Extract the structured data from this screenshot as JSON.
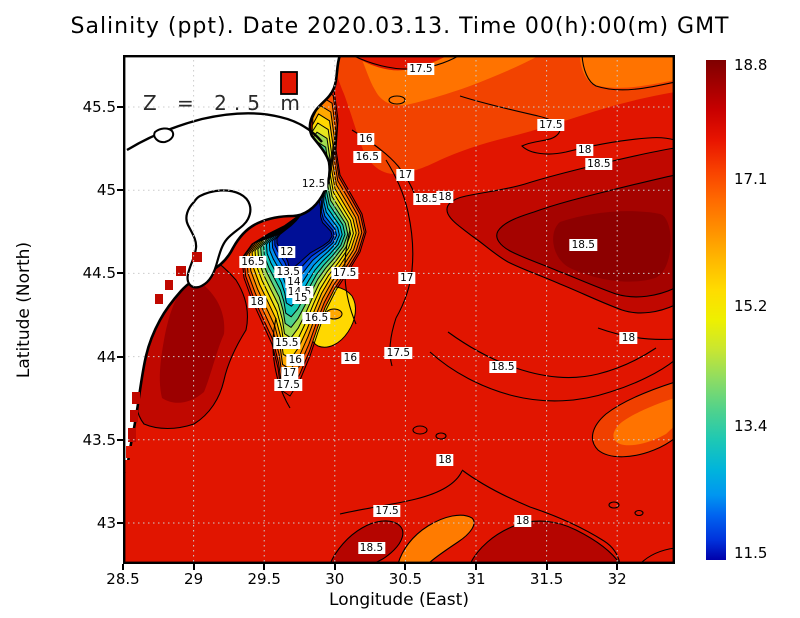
{
  "title": "Salinity (ppt). Date 2020.03.13. Time 00(h):00(m) GMT",
  "annotation": "Z = 2.5 m",
  "axes": {
    "x_label": "Longitude (East)",
    "y_label": "Latitude (North)",
    "x_ticks": [
      {
        "label": "28.5",
        "lon": 28.5
      },
      {
        "label": "29",
        "lon": 29
      },
      {
        "label": "29.5",
        "lon": 29.5
      },
      {
        "label": "30",
        "lon": 30
      },
      {
        "label": "30.5",
        "lon": 30.5
      },
      {
        "label": "31",
        "lon": 31
      },
      {
        "label": "31.5",
        "lon": 31.5
      },
      {
        "label": "32",
        "lon": 32
      }
    ],
    "y_ticks": [
      {
        "label": "45.5",
        "lat": 45.5
      },
      {
        "label": "45",
        "lat": 45
      },
      {
        "label": "44.5",
        "lat": 44.5
      },
      {
        "label": "44",
        "lat": 44
      },
      {
        "label": "43.5",
        "lat": 43.5
      },
      {
        "label": "43",
        "lat": 43
      }
    ]
  },
  "colorbar": {
    "min": 11.5,
    "max": 18.8,
    "tick_labels": [
      {
        "label": "18.8",
        "value": 18.8
      },
      {
        "label": "17.1",
        "value": 17.1
      },
      {
        "label": "15.2",
        "value": 15.2
      },
      {
        "label": "13.4",
        "value": 13.4
      },
      {
        "label": "11.5",
        "value": 11.5
      }
    ]
  },
  "chart_data": {
    "type": "heatmap",
    "title": "Salinity (ppt). Date 2020.03.13. Time 00(h):00(m) GMT",
    "variable": "Salinity",
    "units": "ppt",
    "date": "2020.03.13",
    "time": "00(h):00(m) GMT",
    "depth_annotation": "Z = 2.5 m",
    "xlabel": "Longitude (East)",
    "ylabel": "Latitude (North)",
    "xlim": [
      28.5,
      32.41
    ],
    "ylim": [
      42.75,
      45.81
    ],
    "colorbar_range": [
      11.5,
      18.8
    ],
    "colorbar_ticks": [
      18.8,
      17.1,
      15.2,
      13.4,
      11.5
    ],
    "contour_interval": 0.5,
    "grid": true,
    "legend_position": "right-colorbar",
    "contour_labels": [
      {
        "value": "17.5",
        "lon": 30.61,
        "lat": 45.73
      },
      {
        "value": "17.5",
        "lon": 31.53,
        "lat": 45.39
      },
      {
        "value": "18",
        "lon": 31.77,
        "lat": 45.24
      },
      {
        "value": "18.5",
        "lon": 31.87,
        "lat": 45.16
      },
      {
        "value": "16",
        "lon": 30.22,
        "lat": 45.31
      },
      {
        "value": "16.5",
        "lon": 30.23,
        "lat": 45.2
      },
      {
        "value": "17",
        "lon": 30.5,
        "lat": 45.09
      },
      {
        "value": "12.5",
        "lon": 29.85,
        "lat": 45.04
      },
      {
        "value": "18.5",
        "lon": 30.65,
        "lat": 44.95
      },
      {
        "value": "18",
        "lon": 30.78,
        "lat": 44.96
      },
      {
        "value": "18.5",
        "lon": 31.76,
        "lat": 44.67
      },
      {
        "value": "12",
        "lon": 29.66,
        "lat": 44.63
      },
      {
        "value": "16.5",
        "lon": 29.42,
        "lat": 44.57
      },
      {
        "value": "13.5",
        "lon": 29.67,
        "lat": 44.51
      },
      {
        "value": "14",
        "lon": 29.71,
        "lat": 44.45
      },
      {
        "value": "14.5",
        "lon": 29.75,
        "lat": 44.39
      },
      {
        "value": "15",
        "lon": 29.76,
        "lat": 44.35
      },
      {
        "value": "18",
        "lon": 29.45,
        "lat": 44.33
      },
      {
        "value": "16.5",
        "lon": 29.87,
        "lat": 44.23
      },
      {
        "value": "17.5",
        "lon": 30.07,
        "lat": 44.5
      },
      {
        "value": "17",
        "lon": 30.51,
        "lat": 44.47
      },
      {
        "value": "15.5",
        "lon": 29.66,
        "lat": 44.08
      },
      {
        "value": "16",
        "lon": 29.72,
        "lat": 43.98
      },
      {
        "value": "17",
        "lon": 29.68,
        "lat": 43.9
      },
      {
        "value": "17.5",
        "lon": 29.67,
        "lat": 43.83
      },
      {
        "value": "16",
        "lon": 30.11,
        "lat": 43.99
      },
      {
        "value": "17.5",
        "lon": 30.45,
        "lat": 44.02
      },
      {
        "value": "18.5",
        "lon": 31.19,
        "lat": 43.94
      },
      {
        "value": "18",
        "lon": 32.08,
        "lat": 44.11
      },
      {
        "value": "18",
        "lon": 30.78,
        "lat": 43.38
      },
      {
        "value": "17.5",
        "lon": 30.37,
        "lat": 43.07
      },
      {
        "value": "18",
        "lon": 31.33,
        "lat": 43.01
      },
      {
        "value": "18.5",
        "lon": 30.26,
        "lat": 42.85
      }
    ]
  }
}
